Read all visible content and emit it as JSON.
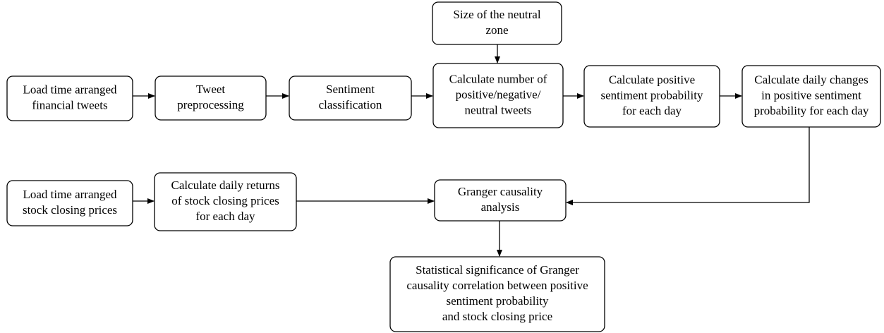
{
  "nodes": [
    {
      "lines": [
        "Load time arranged",
        "financial tweets"
      ]
    },
    {
      "lines": [
        "Tweet",
        "preprocessing"
      ]
    },
    {
      "lines": [
        "Sentiment",
        "classification"
      ]
    },
    {
      "lines": [
        "Calculate number of",
        "positive/negative/",
        "neutral tweets"
      ]
    },
    {
      "lines": [
        "Calculate positive",
        "sentiment probability",
        "for each day"
      ]
    },
    {
      "lines": [
        "Calculate daily changes",
        "in positive sentiment",
        "probability for each day"
      ]
    },
    {
      "lines": [
        "Size of the neutral",
        "zone"
      ]
    },
    {
      "lines": [
        "Load time arranged",
        "stock closing prices"
      ]
    },
    {
      "lines": [
        "Calculate daily returns",
        "of stock closing prices",
        "for each day"
      ]
    },
    {
      "lines": [
        "Granger causality",
        "analysis"
      ]
    },
    {
      "lines": [
        "Statistical significance of Granger",
        "causality correlation between positive",
        "sentiment probability",
        "and stock closing price"
      ]
    }
  ]
}
